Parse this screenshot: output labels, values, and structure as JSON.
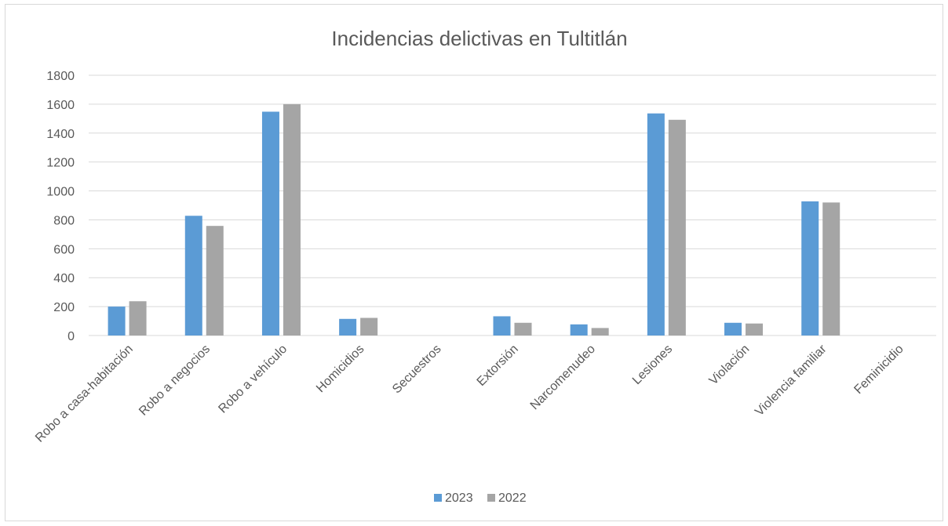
{
  "chart_data": {
    "type": "bar",
    "title": "Incidencias delictivas en Tultitlán",
    "xlabel": "",
    "ylabel": "",
    "ylim": [
      0,
      1800
    ],
    "yticks": [
      0,
      200,
      400,
      600,
      800,
      1000,
      1200,
      1400,
      1600,
      1800
    ],
    "grid": true,
    "legend_position": "bottom",
    "categories": [
      "Robo a casa-habitación",
      "Robo a negocios",
      "Robo a vehículo",
      "Homicidios",
      "Secuestros",
      "Extorsión",
      "Narcomenudeo",
      "Lesiones",
      "Violación",
      "Violencia familiar",
      "Feminicidio"
    ],
    "series": [
      {
        "name": "2023",
        "color": "#5b9bd5",
        "values": [
          200,
          828,
          1548,
          115,
          0,
          133,
          77,
          1536,
          88,
          928,
          0
        ]
      },
      {
        "name": "2022",
        "color": "#a5a5a5",
        "values": [
          237,
          758,
          1600,
          122,
          0,
          88,
          52,
          1492,
          83,
          920,
          0
        ]
      }
    ]
  }
}
